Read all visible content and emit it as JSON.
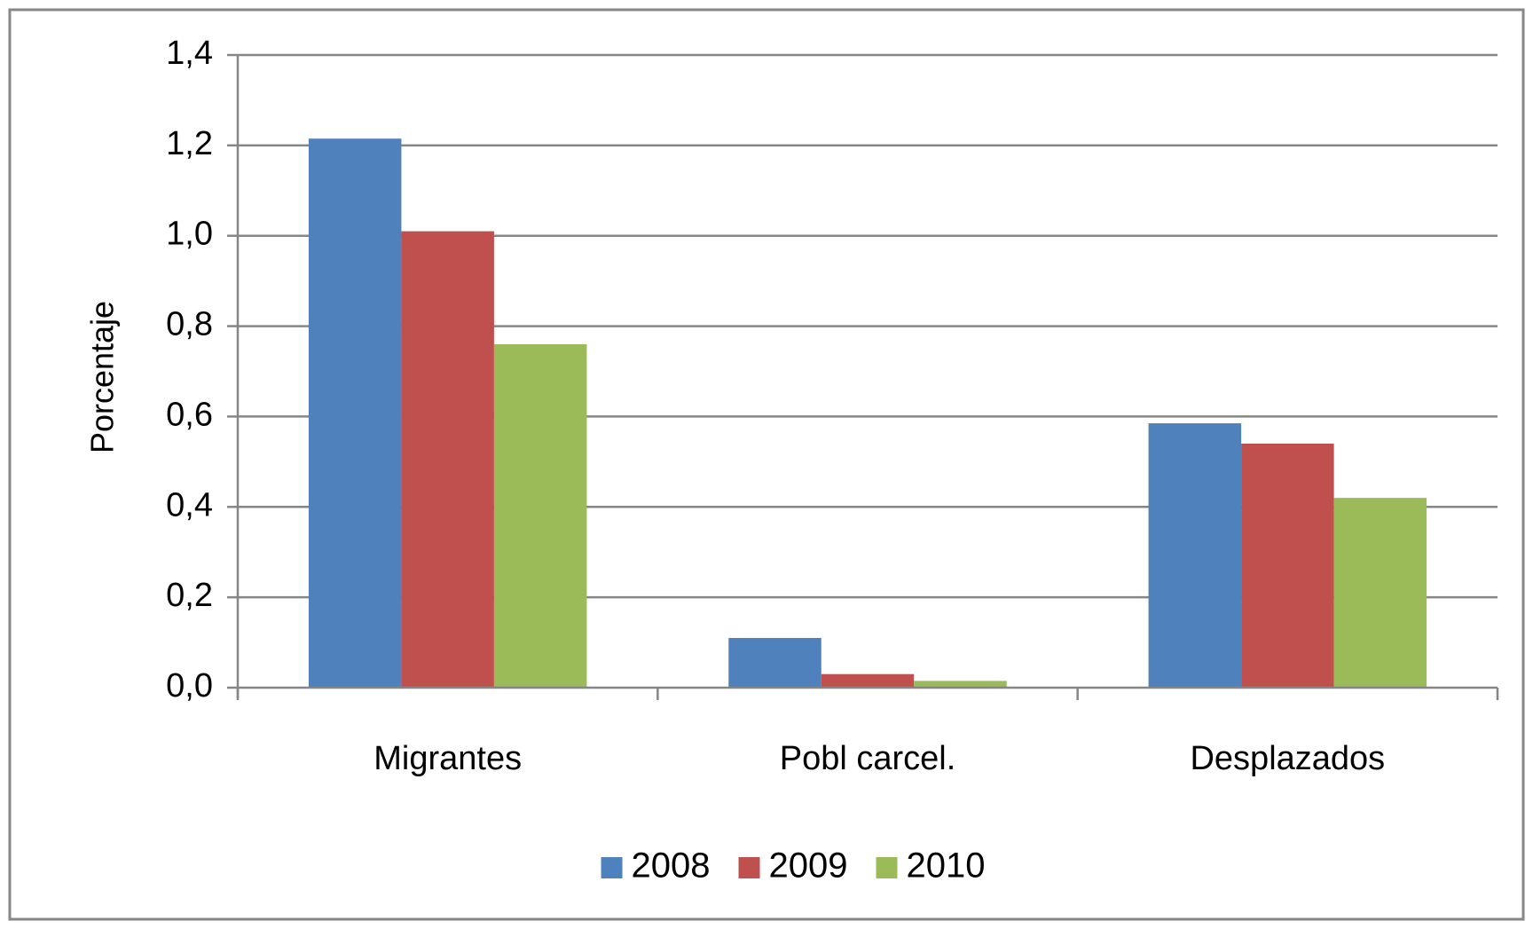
{
  "chart_data": {
    "type": "bar",
    "title": "",
    "xlabel": "",
    "ylabel": "Porcentaje",
    "ylim": [
      0,
      1.4
    ],
    "yticks": [
      "0,0",
      "0,2",
      "0,4",
      "0,6",
      "0,8",
      "1,0",
      "1,2",
      "1,4"
    ],
    "ytick_values": [
      0,
      0.2,
      0.4,
      0.6,
      0.8,
      1.0,
      1.2,
      1.4
    ],
    "categories": [
      "Migrantes",
      "Pobl carcel.",
      "Desplazados"
    ],
    "series": [
      {
        "name": "2008",
        "color": "#4F81BD",
        "values": [
          1.215,
          0.11,
          0.585
        ]
      },
      {
        "name": "2009",
        "color": "#C0504D",
        "values": [
          1.01,
          0.03,
          0.54
        ]
      },
      {
        "name": "2010",
        "color": "#9BBB59",
        "values": [
          0.76,
          0.015,
          0.42
        ]
      }
    ],
    "grid": true,
    "legend_position": "bottom"
  }
}
